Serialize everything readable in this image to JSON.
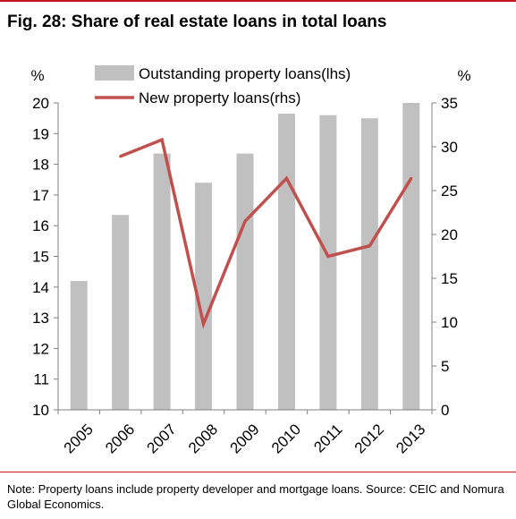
{
  "title": "Fig. 28: Share of real estate loans in total loans",
  "note": "Note: Property loans include property developer and mortgage loans. Source: CEIC and Nomura Global Economics.",
  "colors": {
    "accent": "#c4161c",
    "bar": "#c0c0c0",
    "line": "#c0504d"
  },
  "chart_data": {
    "type": "bar",
    "categories": [
      "2005",
      "2006",
      "2007",
      "2008",
      "2009",
      "2010",
      "2011",
      "2012",
      "2013"
    ],
    "series": [
      {
        "name": "Outstanding property loans(lhs)",
        "type": "bar",
        "axis": "left",
        "values": [
          14.2,
          16.35,
          18.35,
          17.4,
          18.35,
          19.65,
          19.6,
          19.5,
          20.0
        ]
      },
      {
        "name": "New property loans(rhs)",
        "type": "line",
        "axis": "right",
        "values": [
          null,
          28.9,
          30.8,
          9.8,
          21.5,
          26.4,
          17.5,
          18.7,
          26.4
        ]
      }
    ],
    "y_left": {
      "unit": "%",
      "ylim": [
        10,
        20
      ],
      "ticks": [
        "10",
        "11",
        "12",
        "13",
        "14",
        "15",
        "16",
        "17",
        "18",
        "19",
        "20"
      ]
    },
    "y_right": {
      "unit": "%",
      "ylim": [
        0,
        35
      ],
      "ticks": [
        "0",
        "5",
        "10",
        "15",
        "20",
        "25",
        "30",
        "35"
      ]
    },
    "grid": false,
    "legend": "top-center"
  }
}
